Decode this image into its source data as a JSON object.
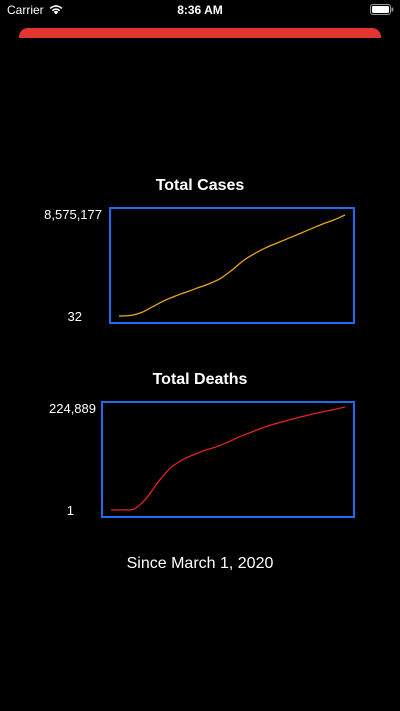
{
  "status_bar": {
    "carrier": "Carrier",
    "time": "8:36 AM",
    "wifi_icon": "wifi-icon",
    "battery_icon": "battery-icon"
  },
  "accent_colors": {
    "top_bar": "#e3342f",
    "frame": "#1e6cf2",
    "cases_line": "#e6a817",
    "deaths_line": "#e3231f"
  },
  "charts": {
    "cases": {
      "title": "Total Cases",
      "max_label": "8,575,177",
      "min_label": "32"
    },
    "deaths": {
      "title": "Total Deaths",
      "max_label": "224,889",
      "min_label": "1"
    }
  },
  "footer": {
    "since": "Since March 1, 2020"
  },
  "chart_data": [
    {
      "type": "line",
      "title": "Total Cases",
      "x": [
        0,
        5,
        10,
        15,
        20,
        25,
        30,
        35,
        40,
        45,
        50,
        55,
        60,
        65,
        70,
        75,
        80,
        85,
        90,
        95,
        100
      ],
      "series": [
        {
          "values": [
            32,
            40000,
            300000,
            800000,
            1300000,
            1700000,
            2050000,
            2400000,
            2750000,
            3200000,
            3900000,
            4700000,
            5300000,
            5800000,
            6200000,
            6600000,
            7000000,
            7400000,
            7800000,
            8150000,
            8575177
          ]
        }
      ],
      "ylim": [
        32,
        8575177
      ]
    },
    {
      "type": "line",
      "title": "Total Deaths",
      "x": [
        0,
        5,
        10,
        15,
        20,
        25,
        30,
        35,
        40,
        45,
        50,
        55,
        60,
        65,
        70,
        75,
        80,
        85,
        90,
        95,
        100
      ],
      "series": [
        {
          "values": [
            1,
            200,
            2500,
            25000,
            60000,
            90000,
            108000,
            120000,
            130000,
            138000,
            148000,
            160000,
            170000,
            180000,
            188000,
            195000,
            202000,
            208000,
            214000,
            219000,
            224889
          ]
        }
      ],
      "ylim": [
        1,
        224889
      ]
    }
  ]
}
